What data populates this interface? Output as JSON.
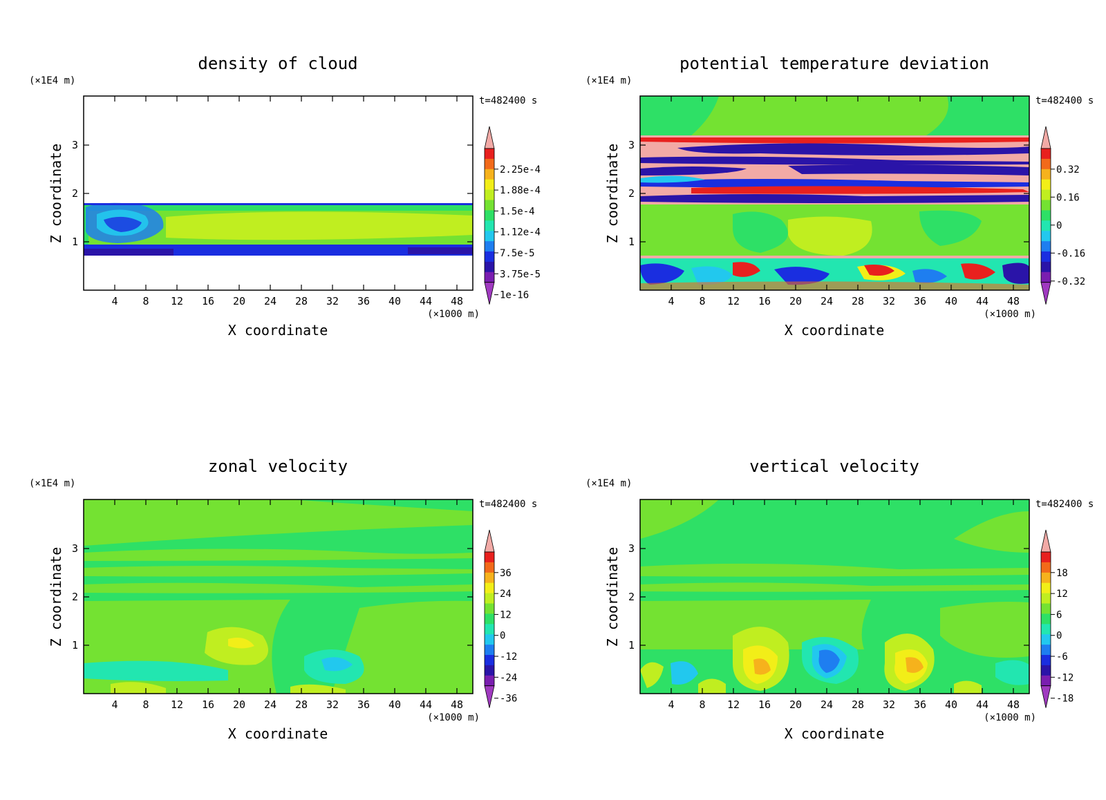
{
  "chart_data": [
    {
      "type": "heatmap",
      "title": "density of cloud",
      "xlabel": "X coordinate",
      "ylabel": "Z coordinate",
      "x_unit": "(×1000 m)",
      "y_unit": "(×1E4 m)",
      "time_label": "t=482400 s",
      "xlim": [
        0,
        50
      ],
      "ylim": [
        0,
        4
      ],
      "x_ticks": [
        "4",
        "8",
        "12",
        "16",
        "20",
        "24",
        "28",
        "32",
        "36",
        "40",
        "44",
        "48"
      ],
      "y_ticks": [
        "1",
        "2",
        "3"
      ],
      "colorbar": {
        "labels": [
          "2.25e-4",
          "1.88e-4",
          "1.5e-4",
          "1.12e-4",
          "7.5e-5",
          "3.75e-5",
          "1e-16"
        ],
        "colors": [
          "#f2aaa6",
          "#e8201e",
          "#f26a1a",
          "#f6b21c",
          "#f2ee18",
          "#c0ee20",
          "#74e232",
          "#2ee066",
          "#22e6b0",
          "#22c8ee",
          "#1e7ef0",
          "#1a2ee0",
          "#2a14a8",
          "#7a1eb0",
          "#a03ac0"
        ]
      }
    },
    {
      "type": "heatmap",
      "title": "potential temperature deviation",
      "xlabel": "X coordinate",
      "ylabel": "Z coordinate",
      "x_unit": "(×1000 m)",
      "y_unit": "(×1E4 m)",
      "time_label": "t=482400 s",
      "xlim": [
        0,
        50
      ],
      "ylim": [
        0,
        4
      ],
      "x_ticks": [
        "4",
        "8",
        "12",
        "16",
        "20",
        "24",
        "28",
        "32",
        "36",
        "40",
        "44",
        "48"
      ],
      "y_ticks": [
        "1",
        "2",
        "3"
      ],
      "colorbar": {
        "labels": [
          "0.32",
          "0.16",
          "0",
          "-0.16",
          "-0.32"
        ],
        "colors": [
          "#f2aaa6",
          "#e8201e",
          "#f26a1a",
          "#f6b21c",
          "#f2ee18",
          "#c0ee20",
          "#74e232",
          "#2ee066",
          "#22e6b0",
          "#22c8ee",
          "#1e7ef0",
          "#1a2ee0",
          "#2a14a8",
          "#7a1eb0",
          "#a03ac0"
        ]
      }
    },
    {
      "type": "heatmap",
      "title": "zonal velocity",
      "xlabel": "X coordinate",
      "ylabel": "Z coordinate",
      "x_unit": "(×1000 m)",
      "y_unit": "(×1E4 m)",
      "time_label": "t=482400 s",
      "xlim": [
        0,
        50
      ],
      "ylim": [
        0,
        4
      ],
      "x_ticks": [
        "4",
        "8",
        "12",
        "16",
        "20",
        "24",
        "28",
        "32",
        "36",
        "40",
        "44",
        "48"
      ],
      "y_ticks": [
        "1",
        "2",
        "3"
      ],
      "colorbar": {
        "labels": [
          "36",
          "24",
          "12",
          "0",
          "-12",
          "-24",
          "-36"
        ],
        "colors": [
          "#f2aaa6",
          "#e8201e",
          "#f26a1a",
          "#f6b21c",
          "#f2ee18",
          "#c0ee20",
          "#74e232",
          "#2ee066",
          "#22e6b0",
          "#22c8ee",
          "#1e7ef0",
          "#1a2ee0",
          "#2a14a8",
          "#7a1eb0",
          "#a03ac0"
        ]
      }
    },
    {
      "type": "heatmap",
      "title": "vertical velocity",
      "xlabel": "X coordinate",
      "ylabel": "Z coordinate",
      "x_unit": "(×1000 m)",
      "y_unit": "(×1E4 m)",
      "time_label": "t=482400 s",
      "xlim": [
        0,
        50
      ],
      "ylim": [
        0,
        4
      ],
      "x_ticks": [
        "4",
        "8",
        "12",
        "16",
        "20",
        "24",
        "28",
        "32",
        "36",
        "40",
        "44",
        "48"
      ],
      "y_ticks": [
        "1",
        "2",
        "3"
      ],
      "colorbar": {
        "labels": [
          "18",
          "12",
          "6",
          "0",
          "-6",
          "-12",
          "-18"
        ],
        "colors": [
          "#f2aaa6",
          "#e8201e",
          "#f26a1a",
          "#f6b21c",
          "#f2ee18",
          "#c0ee20",
          "#74e232",
          "#2ee066",
          "#22e6b0",
          "#22c8ee",
          "#1e7ef0",
          "#1a2ee0",
          "#2a14a8",
          "#7a1eb0",
          "#a03ac0"
        ]
      }
    }
  ]
}
